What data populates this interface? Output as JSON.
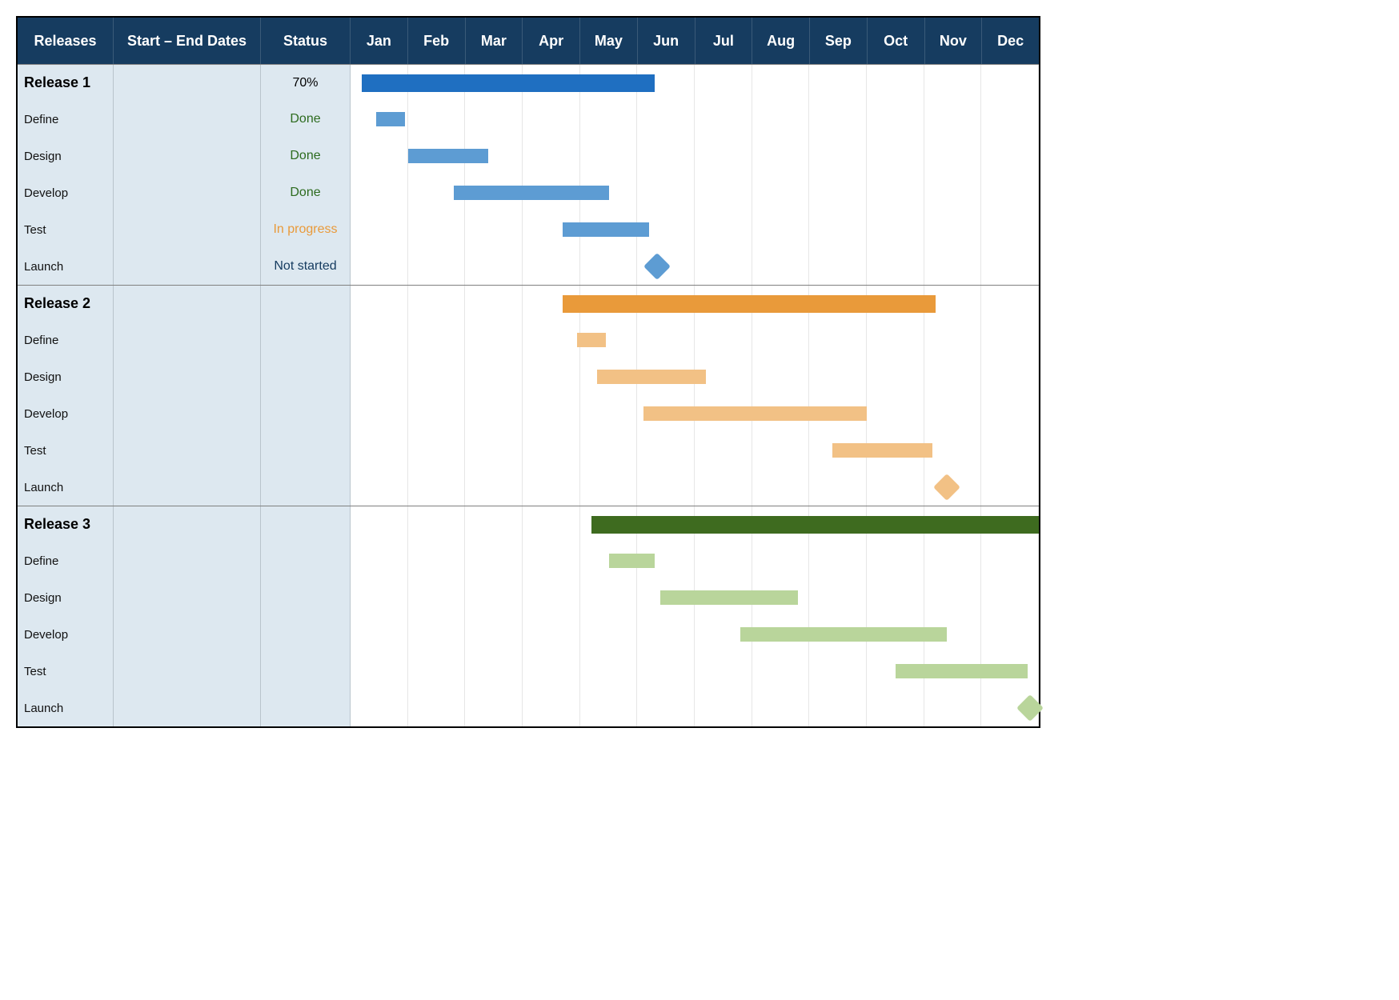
{
  "header": {
    "col_releases": "Releases",
    "col_dates": "Start – End Dates",
    "col_status": "Status",
    "months": [
      "Jan",
      "Feb",
      "Mar",
      "Apr",
      "May",
      "Jun",
      "Jul",
      "Aug",
      "Sep",
      "Oct",
      "Nov",
      "Dec"
    ]
  },
  "colors": {
    "header_bg": "#163c60",
    "side_bg": "#dde8f0",
    "grid": "#e6e6e6",
    "release1_main": "#1f6fc1",
    "release1_task": "#5d9cd3",
    "release2_main": "#e99a3a",
    "release2_task": "#f2c185",
    "release3_main": "#3e6b1f",
    "release3_task": "#b9d59b"
  },
  "status_styles": {
    "Done": "status-done",
    "In progress": "status-progress",
    "Not started": "status-notstart"
  },
  "releases": [
    {
      "name": "Release 1",
      "dates": "",
      "status": "70%",
      "status_class": "status-pct",
      "bar": {
        "start": 0.2,
        "end": 5.3,
        "color": "#1f6fc1",
        "thick": true
      },
      "tasks": [
        {
          "name": "Define",
          "dates": "",
          "status": "Done",
          "bar": {
            "start": 0.45,
            "end": 0.95,
            "color": "#5d9cd3"
          }
        },
        {
          "name": "Design",
          "dates": "",
          "status": "Done",
          "bar": {
            "start": 1.0,
            "end": 2.4,
            "color": "#5d9cd3"
          }
        },
        {
          "name": "Develop",
          "dates": "",
          "status": "Done",
          "bar": {
            "start": 1.8,
            "end": 4.5,
            "color": "#5d9cd3"
          }
        },
        {
          "name": "Test",
          "dates": "",
          "status": "In progress",
          "bar": {
            "start": 3.7,
            "end": 5.2,
            "color": "#5d9cd3"
          }
        },
        {
          "name": "Launch",
          "dates": "",
          "status": "Not started",
          "milestone": {
            "at": 5.35,
            "color": "#5d9cd3"
          }
        }
      ]
    },
    {
      "name": "Release 2",
      "dates": "",
      "status": "",
      "status_class": "",
      "bar": {
        "start": 3.7,
        "end": 10.2,
        "color": "#e99a3a",
        "thick": true
      },
      "tasks": [
        {
          "name": "Define",
          "dates": "",
          "status": "",
          "bar": {
            "start": 3.95,
            "end": 4.45,
            "color": "#f2c185"
          }
        },
        {
          "name": "Design",
          "dates": "",
          "status": "",
          "bar": {
            "start": 4.3,
            "end": 6.2,
            "color": "#f2c185"
          }
        },
        {
          "name": "Develop",
          "dates": "",
          "status": "",
          "bar": {
            "start": 5.1,
            "end": 9.0,
            "color": "#f2c185"
          }
        },
        {
          "name": "Test",
          "dates": "",
          "status": "",
          "bar": {
            "start": 8.4,
            "end": 10.15,
            "color": "#f2c185"
          }
        },
        {
          "name": "Launch",
          "dates": "",
          "status": "",
          "milestone": {
            "at": 10.4,
            "color": "#f2c185"
          }
        }
      ]
    },
    {
      "name": "Release 3",
      "dates": "",
      "status": "",
      "status_class": "",
      "bar": {
        "start": 4.2,
        "end": 12.0,
        "color": "#3e6b1f",
        "thick": true
      },
      "tasks": [
        {
          "name": "Define",
          "dates": "",
          "status": "",
          "bar": {
            "start": 4.5,
            "end": 5.3,
            "color": "#b9d59b"
          }
        },
        {
          "name": "Design",
          "dates": "",
          "status": "",
          "bar": {
            "start": 5.4,
            "end": 7.8,
            "color": "#b9d59b"
          }
        },
        {
          "name": "Develop",
          "dates": "",
          "status": "",
          "bar": {
            "start": 6.8,
            "end": 10.4,
            "color": "#b9d59b"
          }
        },
        {
          "name": "Test",
          "dates": "",
          "status": "",
          "bar": {
            "start": 9.5,
            "end": 11.8,
            "color": "#b9d59b"
          }
        },
        {
          "name": "Launch",
          "dates": "",
          "status": "",
          "milestone": {
            "at": 11.85,
            "color": "#b9d59b"
          }
        }
      ]
    }
  ]
}
